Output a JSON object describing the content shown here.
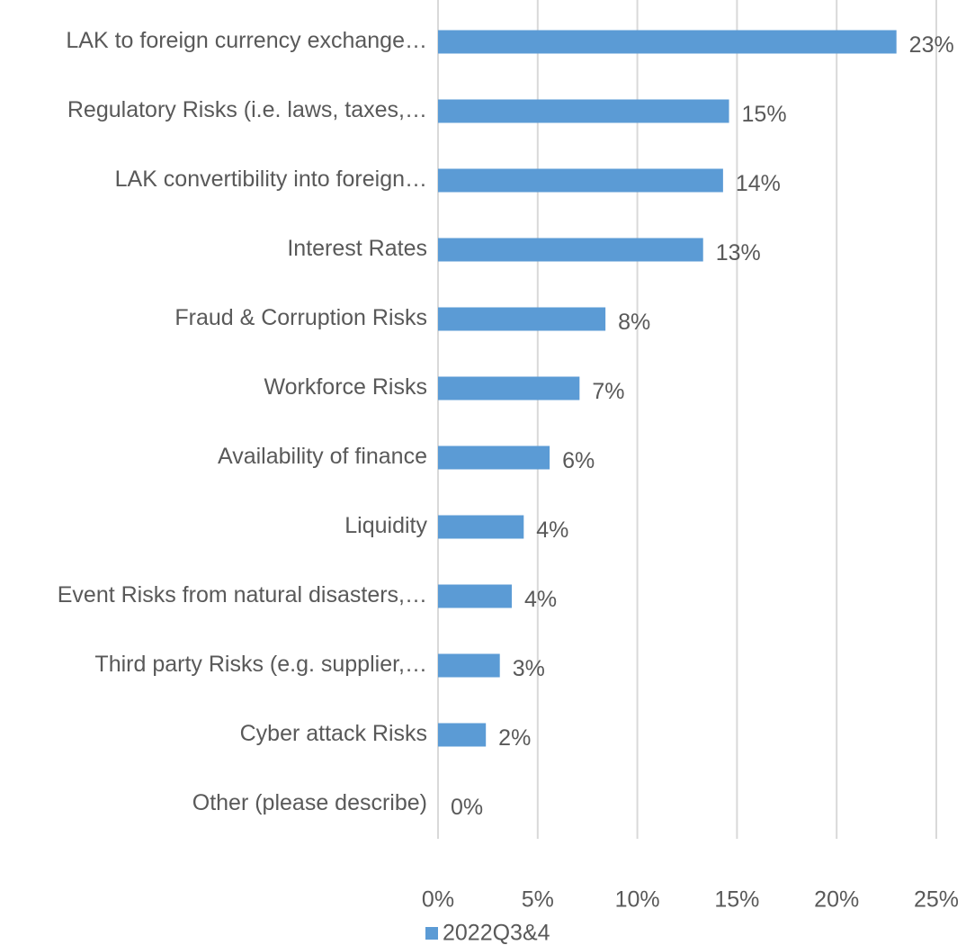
{
  "chart_data": {
    "type": "hbar",
    "categories": [
      "LAK to foreign currency exchange…",
      "Regulatory Risks (i.e. laws, taxes,…",
      "LAK convertibility into foreign…",
      "Interest Rates",
      "Fraud & Corruption Risks",
      "Workforce Risks",
      "Availability of finance",
      "Liquidity",
      "Event Risks from natural disasters,…",
      "Third party Risks (e.g. supplier,…",
      "Cyber attack Risks",
      "Other (please describe)"
    ],
    "series": [
      {
        "name": "2022Q3&4",
        "color": "#5b9bd5",
        "values": [
          23,
          14.6,
          14.3,
          13.3,
          8.4,
          7.1,
          5.6,
          4.3,
          3.7,
          3.1,
          2.4,
          0
        ],
        "value_labels": [
          "23%",
          "15%",
          "14%",
          "13%",
          "8%",
          "7%",
          "6%",
          "4%",
          "4%",
          "3%",
          "2%",
          "0%"
        ]
      }
    ],
    "xlim": [
      0,
      25
    ],
    "xticks": [
      {
        "value": 0,
        "label": "0%"
      },
      {
        "value": 5,
        "label": "5%"
      },
      {
        "value": 10,
        "label": "10%"
      },
      {
        "value": 15,
        "label": "15%"
      },
      {
        "value": 20,
        "label": "20%"
      },
      {
        "value": 25,
        "label": "25%"
      }
    ],
    "grid": true,
    "legend": "bottom"
  }
}
